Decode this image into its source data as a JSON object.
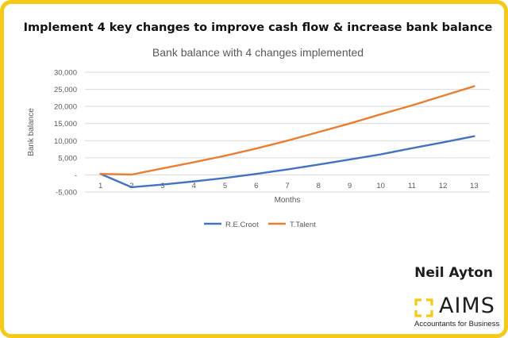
{
  "header": {
    "title": "Implement 4 key changes to improve cash flow & increase bank balance"
  },
  "branding": {
    "author": "Neil Ayton",
    "logo_word": "AIMS",
    "logo_tagline": "Accountants for Business",
    "accent_color": "#f5c915"
  },
  "chart_data": {
    "type": "line",
    "title": "Bank balance with 4 changes implemented",
    "xlabel": "Months",
    "ylabel": "Bank balance",
    "x": [
      1,
      2,
      3,
      4,
      5,
      6,
      7,
      8,
      9,
      10,
      11,
      12,
      13
    ],
    "ylim": [
      -5000,
      30000
    ],
    "yticks": [
      -5000,
      0,
      5000,
      10000,
      15000,
      20000,
      25000,
      30000
    ],
    "ytick_labels": [
      "-5,000",
      "-",
      "5,000",
      "10,000",
      "15,000",
      "20,000",
      "25,000",
      "30,000"
    ],
    "grid": true,
    "legend_position": "bottom",
    "series": [
      {
        "name": "R.E.Croot",
        "color": "#4472c4",
        "values": [
          300,
          -3600,
          -2800,
          -1900,
          -900,
          300,
          1600,
          3000,
          4500,
          6000,
          7800,
          9500,
          11300
        ]
      },
      {
        "name": "T.Talent",
        "color": "#ed7d31",
        "values": [
          300,
          100,
          1900,
          3700,
          5600,
          7700,
          10000,
          12500,
          15000,
          17700,
          20300,
          23100,
          25900
        ]
      }
    ]
  }
}
